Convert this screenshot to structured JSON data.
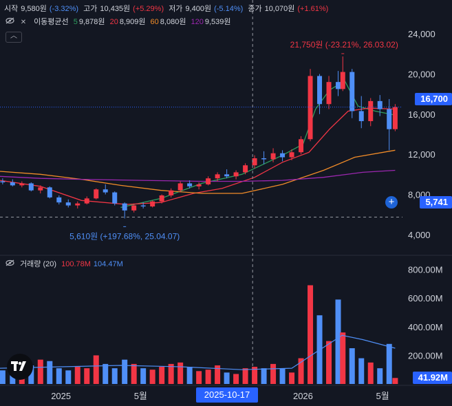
{
  "ohlc_legend": {
    "open_label": "시작",
    "open_value": "9,580원",
    "open_change": "(-3.32%)",
    "high_label": "고가",
    "high_value": "10,435원",
    "high_change": "(+5.29%)",
    "low_label": "저가",
    "low_value": "9,400원",
    "low_change": "(-5.14%)",
    "close_label": "종가",
    "close_value": "10,070원",
    "close_change": "(+1.61%)"
  },
  "ma_legend": {
    "title": "이동평균선",
    "items": [
      {
        "period": "5",
        "value": "9,878원",
        "color": "#2e9f5f"
      },
      {
        "period": "20",
        "value": "8,909원",
        "color": "#f23645"
      },
      {
        "period": "60",
        "value": "8,080원",
        "color": "#f28c28"
      },
      {
        "period": "120",
        "value": "9,539원",
        "color": "#9c27b0"
      }
    ]
  },
  "volume_legend": {
    "title": "거래량 (20)",
    "value_red": "100.78M",
    "value_blue": "104.47M"
  },
  "icons": {
    "eye_hide": "eye-slash-icon",
    "close": "close-icon",
    "collapse": "chevron-up-icon",
    "add": "plus-circle-icon",
    "logo": "tradingview-logo-icon"
  },
  "colors": {
    "background": "#131722",
    "up": "#f23645",
    "down": "#4f8ff7",
    "accent": "#2962ff"
  },
  "chart_data": [
    {
      "type": "candlestick",
      "title": "",
      "y_ticks": [
        "4,000",
        "8,000",
        "12,000",
        "16,000",
        "20,000",
        "24,000"
      ],
      "ylim": [
        2000,
        26000
      ],
      "y_scale": "linear",
      "x_ticks": [
        "2025",
        "5월",
        "2025-10-17",
        "2026",
        "5월"
      ],
      "x_range": [
        "2024-10-01",
        "2026-05-31"
      ],
      "current_price_label": "16,700",
      "current_price": 16700,
      "crosshair_price_label": "5,741",
      "crosshair_price": 5741,
      "crosshair_date_label": "2025-10-17",
      "annotations": {
        "high": {
          "text": "21,750원 (-23.21%, 26.03.02)",
          "value": 21750,
          "date": "2026-03-02"
        },
        "low": {
          "text": "5,610원 (+197.68%, 25.04.07)",
          "value": 5610,
          "date": "2025-04-07"
        }
      },
      "series": [
        {
          "name": "price",
          "points": [
            {
              "d": "2024-10-05",
              "o": 9300,
              "h": 9600,
              "l": 9000,
              "c": 9200
            },
            {
              "d": "2024-10-20",
              "o": 9200,
              "h": 9500,
              "l": 8800,
              "c": 8900
            },
            {
              "d": "2024-11-03",
              "o": 8900,
              "h": 9300,
              "l": 8700,
              "c": 9100
            },
            {
              "d": "2024-11-17",
              "o": 9100,
              "h": 9200,
              "l": 8300,
              "c": 8400
            },
            {
              "d": "2024-12-01",
              "o": 8400,
              "h": 8900,
              "l": 8100,
              "c": 8700
            },
            {
              "d": "2024-12-15",
              "o": 8700,
              "h": 8800,
              "l": 7600,
              "c": 7700
            },
            {
              "d": "2024-12-29",
              "o": 7700,
              "h": 7900,
              "l": 7000,
              "c": 7200
            },
            {
              "d": "2025-01-12",
              "o": 7200,
              "h": 7500,
              "l": 6700,
              "c": 6900
            },
            {
              "d": "2025-01-26",
              "o": 6900,
              "h": 7300,
              "l": 6600,
              "c": 7100
            },
            {
              "d": "2025-02-09",
              "o": 7100,
              "h": 7800,
              "l": 7000,
              "c": 7600
            },
            {
              "d": "2025-02-23",
              "o": 7600,
              "h": 8600,
              "l": 7500,
              "c": 8500
            },
            {
              "d": "2025-03-09",
              "o": 8500,
              "h": 9000,
              "l": 8000,
              "c": 8200
            },
            {
              "d": "2025-03-23",
              "o": 8200,
              "h": 8300,
              "l": 6900,
              "c": 7100
            },
            {
              "d": "2025-04-07",
              "o": 7100,
              "h": 7200,
              "l": 5610,
              "c": 6400
            },
            {
              "d": "2025-04-21",
              "o": 6400,
              "h": 7100,
              "l": 6200,
              "c": 6900
            },
            {
              "d": "2025-05-05",
              "o": 6900,
              "h": 7200,
              "l": 6600,
              "c": 6800
            },
            {
              "d": "2025-05-19",
              "o": 6800,
              "h": 7400,
              "l": 6700,
              "c": 7300
            },
            {
              "d": "2025-06-02",
              "o": 7300,
              "h": 8000,
              "l": 7100,
              "c": 7900
            },
            {
              "d": "2025-06-16",
              "o": 7900,
              "h": 8600,
              "l": 7700,
              "c": 8400
            },
            {
              "d": "2025-06-30",
              "o": 8400,
              "h": 9300,
              "l": 8200,
              "c": 9100
            },
            {
              "d": "2025-07-14",
              "o": 9100,
              "h": 9400,
              "l": 8600,
              "c": 8800
            },
            {
              "d": "2025-07-28",
              "o": 8800,
              "h": 9200,
              "l": 8500,
              "c": 9000
            },
            {
              "d": "2025-08-11",
              "o": 9000,
              "h": 9800,
              "l": 8900,
              "c": 9600
            },
            {
              "d": "2025-08-25",
              "o": 9600,
              "h": 10200,
              "l": 9300,
              "c": 10000
            },
            {
              "d": "2025-09-08",
              "o": 10000,
              "h": 10500,
              "l": 9600,
              "c": 9800
            },
            {
              "d": "2025-09-22",
              "o": 9800,
              "h": 10400,
              "l": 9500,
              "c": 10200
            },
            {
              "d": "2025-10-06",
              "o": 10200,
              "h": 11100,
              "l": 10000,
              "c": 10900
            },
            {
              "d": "2025-10-20",
              "o": 10900,
              "h": 11900,
              "l": 10600,
              "c": 11600
            },
            {
              "d": "2025-11-03",
              "o": 11600,
              "h": 12300,
              "l": 11000,
              "c": 11500
            },
            {
              "d": "2025-11-17",
              "o": 11500,
              "h": 12600,
              "l": 11200,
              "c": 12100
            },
            {
              "d": "2025-12-01",
              "o": 12100,
              "h": 12400,
              "l": 11300,
              "c": 11700
            },
            {
              "d": "2025-12-15",
              "o": 11700,
              "h": 12500,
              "l": 11400,
              "c": 12200
            },
            {
              "d": "2025-12-29",
              "o": 12200,
              "h": 13800,
              "l": 12000,
              "c": 13500
            },
            {
              "d": "2026-01-12",
              "o": 13500,
              "h": 20500,
              "l": 13300,
              "c": 19800
            },
            {
              "d": "2026-01-26",
              "o": 19800,
              "h": 20000,
              "l": 16000,
              "c": 17000
            },
            {
              "d": "2026-02-09",
              "o": 17000,
              "h": 19800,
              "l": 16500,
              "c": 19200
            },
            {
              "d": "2026-02-23",
              "o": 19200,
              "h": 20300,
              "l": 17800,
              "c": 18500
            },
            {
              "d": "2026-03-02",
              "o": 18500,
              "h": 21750,
              "l": 18300,
              "c": 20200
            },
            {
              "d": "2026-03-16",
              "o": 20200,
              "h": 20500,
              "l": 15600,
              "c": 16300
            },
            {
              "d": "2026-03-30",
              "o": 16300,
              "h": 17800,
              "l": 14600,
              "c": 15300
            },
            {
              "d": "2026-04-13",
              "o": 15300,
              "h": 17600,
              "l": 14800,
              "c": 17300
            },
            {
              "d": "2026-04-27",
              "o": 17300,
              "h": 17900,
              "l": 15800,
              "c": 16500
            },
            {
              "d": "2026-05-11",
              "o": 16500,
              "h": 17500,
              "l": 12400,
              "c": 14500
            },
            {
              "d": "2026-05-20",
              "o": 14500,
              "h": 17000,
              "l": 14300,
              "c": 16700
            }
          ]
        },
        {
          "name": "5",
          "color": "#2e9f5f",
          "values": [
            [
              "2025-04-01",
              6700
            ],
            [
              "2025-06-01",
              7600
            ],
            [
              "2025-08-01",
              9100
            ],
            [
              "2025-10-01",
              10000
            ],
            [
              "2025-12-01",
              11900
            ],
            [
              "2026-01-01",
              13000
            ],
            [
              "2026-01-20",
              16500
            ],
            [
              "2026-02-10",
              18400
            ],
            [
              "2026-03-05",
              19300
            ],
            [
              "2026-03-25",
              16800
            ],
            [
              "2026-04-20",
              16300
            ],
            [
              "2026-05-20",
              15900
            ]
          ]
        },
        {
          "name": "20",
          "color": "#f23645",
          "values": [
            [
              "2024-10-01",
              9400
            ],
            [
              "2024-12-01",
              8800
            ],
            [
              "2025-02-01",
              7400
            ],
            [
              "2025-04-10",
              7000
            ],
            [
              "2025-06-01",
              7200
            ],
            [
              "2025-07-20",
              8100
            ],
            [
              "2025-09-01",
              8600
            ],
            [
              "2025-10-20",
              9700
            ],
            [
              "2025-12-01",
              11200
            ],
            [
              "2026-01-10",
              12200
            ],
            [
              "2026-02-10",
              14500
            ],
            [
              "2026-03-10",
              16300
            ],
            [
              "2026-04-10",
              16600
            ],
            [
              "2026-05-20",
              16500
            ]
          ]
        },
        {
          "name": "60",
          "color": "#f28c28",
          "values": [
            [
              "2024-10-01",
              10300
            ],
            [
              "2024-12-01",
              10000
            ],
            [
              "2025-02-01",
              9500
            ],
            [
              "2025-04-01",
              8900
            ],
            [
              "2025-06-01",
              8400
            ],
            [
              "2025-08-01",
              8100
            ],
            [
              "2025-10-01",
              8100
            ],
            [
              "2025-12-01",
              9000
            ],
            [
              "2026-02-01",
              10400
            ],
            [
              "2026-03-20",
              11700
            ],
            [
              "2026-05-20",
              12400
            ]
          ]
        },
        {
          "name": "120",
          "color": "#9c27b0",
          "values": [
            [
              "2024-10-01",
              9800
            ],
            [
              "2024-12-01",
              9600
            ],
            [
              "2025-02-01",
              9500
            ],
            [
              "2025-05-01",
              9400
            ],
            [
              "2025-08-01",
              9300
            ],
            [
              "2025-10-01",
              9300
            ],
            [
              "2025-12-01",
              9400
            ],
            [
              "2026-02-01",
              9700
            ],
            [
              "2026-04-01",
              10200
            ],
            [
              "2026-05-20",
              10400
            ]
          ]
        }
      ]
    },
    {
      "type": "bar",
      "title": "거래량 (20)",
      "y_ticks": [
        "200.00M",
        "400.00M",
        "600.00M",
        "800.00M"
      ],
      "ylim": [
        0,
        880
      ],
      "y_unit": "M",
      "current_volume_label": "41.92M",
      "volumes": [
        {
          "d": "2024-10-05",
          "v": 95,
          "up": false
        },
        {
          "d": "2024-10-20",
          "v": 60,
          "up": false
        },
        {
          "d": "2024-11-03",
          "v": 80,
          "up": true
        },
        {
          "d": "2024-11-17",
          "v": 130,
          "up": false
        },
        {
          "d": "2024-12-01",
          "v": 170,
          "up": true
        },
        {
          "d": "2024-12-15",
          "v": 160,
          "up": false
        },
        {
          "d": "2024-12-29",
          "v": 110,
          "up": false
        },
        {
          "d": "2025-01-12",
          "v": 95,
          "up": false
        },
        {
          "d": "2025-01-26",
          "v": 120,
          "up": true
        },
        {
          "d": "2025-02-09",
          "v": 110,
          "up": true
        },
        {
          "d": "2025-02-23",
          "v": 200,
          "up": true
        },
        {
          "d": "2025-03-09",
          "v": 140,
          "up": false
        },
        {
          "d": "2025-03-23",
          "v": 110,
          "up": false
        },
        {
          "d": "2025-04-07",
          "v": 170,
          "up": false
        },
        {
          "d": "2025-04-21",
          "v": 140,
          "up": true
        },
        {
          "d": "2025-05-05",
          "v": 110,
          "up": false
        },
        {
          "d": "2025-05-19",
          "v": 100,
          "up": true
        },
        {
          "d": "2025-06-02",
          "v": 120,
          "up": true
        },
        {
          "d": "2025-06-16",
          "v": 140,
          "up": true
        },
        {
          "d": "2025-06-30",
          "v": 150,
          "up": true
        },
        {
          "d": "2025-07-14",
          "v": 120,
          "up": false
        },
        {
          "d": "2025-07-28",
          "v": 90,
          "up": true
        },
        {
          "d": "2025-08-11",
          "v": 100,
          "up": true
        },
        {
          "d": "2025-08-25",
          "v": 130,
          "up": true
        },
        {
          "d": "2025-09-08",
          "v": 80,
          "up": false
        },
        {
          "d": "2025-09-22",
          "v": 70,
          "up": true
        },
        {
          "d": "2025-10-06",
          "v": 110,
          "up": true
        },
        {
          "d": "2025-10-20",
          "v": 120,
          "up": true
        },
        {
          "d": "2025-11-03",
          "v": 110,
          "up": false
        },
        {
          "d": "2025-11-17",
          "v": 140,
          "up": true
        },
        {
          "d": "2025-12-01",
          "v": 110,
          "up": false
        },
        {
          "d": "2025-12-15",
          "v": 80,
          "up": true
        },
        {
          "d": "2025-12-29",
          "v": 180,
          "up": true
        },
        {
          "d": "2026-01-12",
          "v": 690,
          "up": true
        },
        {
          "d": "2026-01-26",
          "v": 480,
          "up": false
        },
        {
          "d": "2026-02-09",
          "v": 300,
          "up": true
        },
        {
          "d": "2026-02-23",
          "v": 590,
          "up": false
        },
        {
          "d": "2026-03-02",
          "v": 360,
          "up": true
        },
        {
          "d": "2026-03-16",
          "v": 250,
          "up": false
        },
        {
          "d": "2026-03-30",
          "v": 180,
          "up": false
        },
        {
          "d": "2026-04-13",
          "v": 150,
          "up": true
        },
        {
          "d": "2026-04-27",
          "v": 110,
          "up": false
        },
        {
          "d": "2026-05-11",
          "v": 280,
          "up": false
        },
        {
          "d": "2026-05-20",
          "v": 42,
          "up": true
        }
      ],
      "volume_ma": [
        [
          "2024-10-01",
          110
        ],
        [
          "2025-01-01",
          120
        ],
        [
          "2025-04-01",
          130
        ],
        [
          "2025-07-01",
          120
        ],
        [
          "2025-10-01",
          100
        ],
        [
          "2025-12-15",
          110
        ],
        [
          "2026-01-20",
          220
        ],
        [
          "2026-03-01",
          340
        ],
        [
          "2026-04-01",
          310
        ],
        [
          "2026-05-20",
          250
        ]
      ]
    }
  ]
}
